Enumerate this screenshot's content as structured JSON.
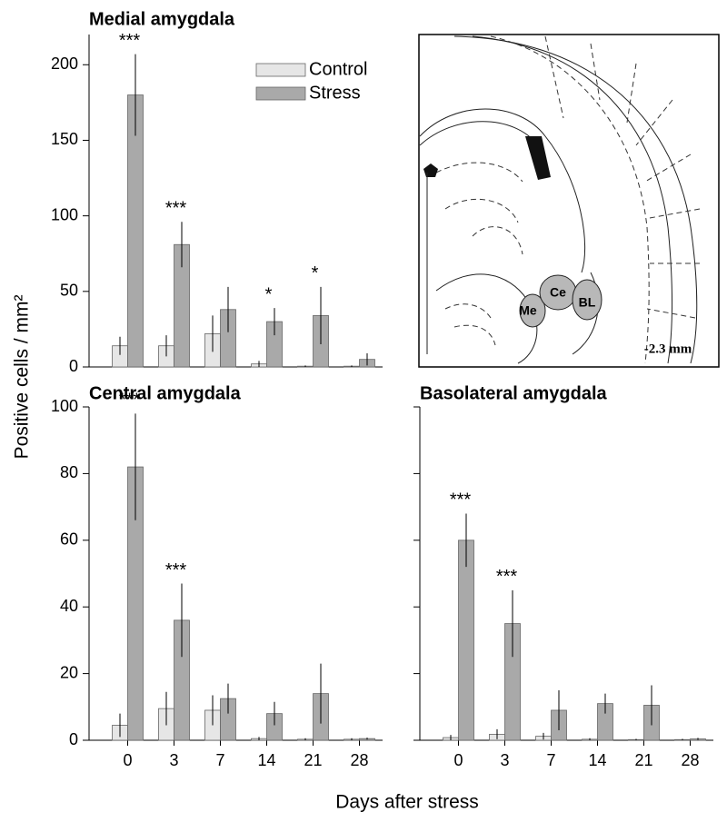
{
  "figure": {
    "ylabel": "Positive cells / mm²",
    "xlabel": "Days after stress"
  },
  "diagram": {
    "labels": [
      "Me",
      "Ce",
      "BL"
    ],
    "scale": "-2.3 mm"
  },
  "chart_data": [
    {
      "type": "bar",
      "title": "Medial amygdala",
      "categories": [
        "0",
        "3",
        "7",
        "14",
        "21",
        "28"
      ],
      "series": [
        {
          "name": "Control",
          "color": "#e6e6e6",
          "values": [
            14,
            14,
            22,
            2,
            0.5,
            0.5
          ],
          "errors": [
            6,
            7,
            12,
            2,
            0.5,
            0.5
          ]
        },
        {
          "name": "Stress",
          "color": "#a9a9a9",
          "values": [
            180,
            81,
            38,
            30,
            34,
            5
          ],
          "errors": [
            27,
            15,
            15,
            9,
            19,
            4
          ]
        }
      ],
      "significance": [
        "***",
        "***",
        null,
        "*",
        "*",
        null
      ],
      "ylim": [
        0,
        220
      ],
      "yticks": [
        0,
        50,
        100,
        150,
        200
      ],
      "legend": "upper right",
      "xtick_labels": false,
      "ytick_labels": true
    },
    {
      "type": "bar",
      "title": "Central amygdala",
      "categories": [
        "0",
        "3",
        "7",
        "14",
        "21",
        "28"
      ],
      "series": [
        {
          "name": "Control",
          "color": "#e6e6e6",
          "values": [
            4.5,
            9.5,
            9,
            0.5,
            0.3,
            0.3
          ],
          "errors": [
            3.5,
            5,
            4.5,
            0.5,
            0.3,
            0.3
          ]
        },
        {
          "name": "Stress",
          "color": "#a9a9a9",
          "values": [
            82,
            36,
            12.5,
            8,
            14,
            0.5
          ],
          "errors": [
            16,
            11,
            4.5,
            3.5,
            9,
            0.3
          ]
        }
      ],
      "significance": [
        "***",
        "***",
        null,
        null,
        null,
        null
      ],
      "ylim": [
        0,
        100
      ],
      "yticks": [
        0,
        20,
        40,
        60,
        80,
        100
      ],
      "xtick_labels": true,
      "ytick_labels": true
    },
    {
      "type": "bar",
      "title": "Basolateral amygdala",
      "categories": [
        "0",
        "3",
        "7",
        "14",
        "21",
        "28"
      ],
      "series": [
        {
          "name": "Control",
          "color": "#e6e6e6",
          "values": [
            0.8,
            1.8,
            1.2,
            0.3,
            0.2,
            0.2
          ],
          "errors": [
            0.8,
            1.5,
            1,
            0.3,
            0.2,
            0.2
          ]
        },
        {
          "name": "Stress",
          "color": "#a9a9a9",
          "values": [
            60,
            35,
            9,
            11,
            10.5,
            0.4
          ],
          "errors": [
            8,
            10,
            6,
            3,
            6,
            0.3
          ]
        }
      ],
      "significance": [
        "***",
        "***",
        null,
        null,
        null,
        null
      ],
      "ylim": [
        0,
        100
      ],
      "yticks": [
        0,
        20,
        40,
        60,
        80,
        100
      ],
      "xtick_labels": true,
      "ytick_labels": false
    }
  ]
}
